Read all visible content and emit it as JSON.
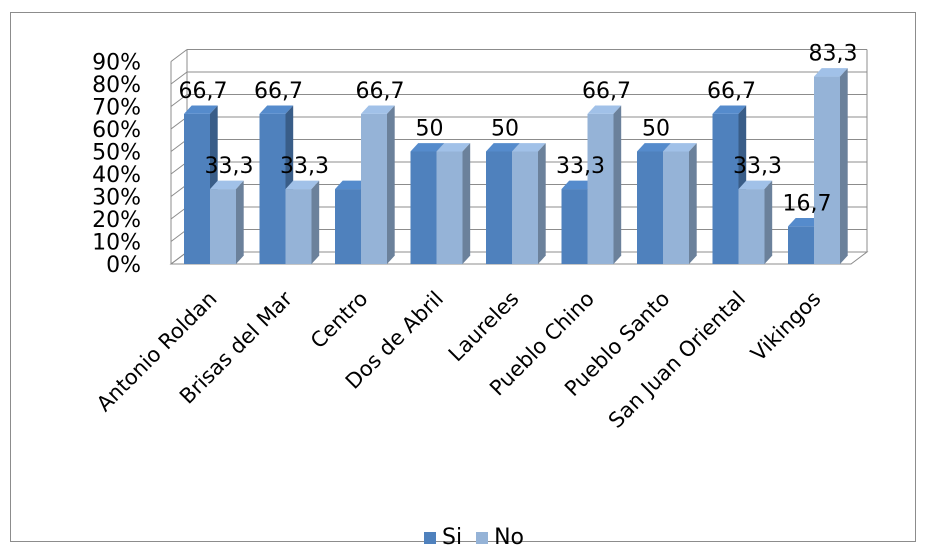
{
  "chart_data": {
    "type": "bar",
    "categories": [
      "Antonio Roldan",
      "Brisas del Mar",
      "Centro",
      "Dos de Abril",
      "Laureles",
      "Pueblo Chino",
      "Pueblo Santo",
      "San Juan Oriental",
      "Vikingos"
    ],
    "series": [
      {
        "name": "Si",
        "values": [
          66.7,
          66.7,
          33.3,
          50,
          50,
          33.3,
          50,
          66.7,
          16.7
        ],
        "labels": [
          "66,7",
          "66,7",
          "",
          "50",
          "50",
          "33,3",
          "50",
          "66,7",
          "16,7"
        ],
        "color": "#4f81bd"
      },
      {
        "name": "No",
        "values": [
          33.3,
          33.3,
          66.7,
          50,
          50,
          66.7,
          50,
          33.3,
          83.3
        ],
        "labels": [
          "33,3",
          "33,3",
          "66,7",
          "",
          "",
          "66,7",
          "",
          "33,3",
          "83,3"
        ],
        "color": "#95b3d7"
      }
    ],
    "y_ticks": [
      "0%",
      "10%",
      "20%",
      "30%",
      "40%",
      "50%",
      "60%",
      "70%",
      "80%",
      "90%"
    ],
    "ylim": [
      0,
      90
    ],
    "grid": true,
    "legend_position": "bottom",
    "three_d": true
  }
}
